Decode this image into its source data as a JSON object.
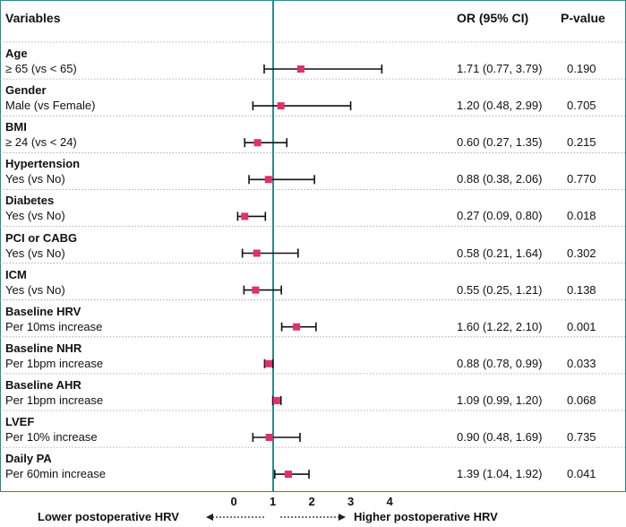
{
  "chart_data": {
    "type": "forest",
    "headers": {
      "variables": "Variables",
      "or": "OR (95% CI)",
      "p": "P-value"
    },
    "reference_value": 1,
    "x_ticks": [
      "0",
      "1",
      "2",
      "3",
      "4"
    ],
    "x_tick_values": [
      0,
      1,
      2,
      3,
      4
    ],
    "xlim": [
      0,
      4.2
    ],
    "axis_left_label": "Lower postoperative HRV",
    "axis_right_label": "Higher postoperative HRV",
    "rows": [
      {
        "variable": "Age",
        "level": "≥ 65 (vs < 65)",
        "or": 1.71,
        "lo": 0.77,
        "hi": 3.79,
        "or_text": "1.71 (0.77, 3.79)",
        "p": "0.190"
      },
      {
        "variable": "Gender",
        "level": "Male (vs Female)",
        "or": 1.2,
        "lo": 0.48,
        "hi": 2.99,
        "or_text": "1.20 (0.48, 2.99)",
        "p": "0.705"
      },
      {
        "variable": "BMI",
        "level": "≥ 24 (vs < 24)",
        "or": 0.6,
        "lo": 0.27,
        "hi": 1.35,
        "or_text": "0.60 (0.27, 1.35)",
        "p": "0.215"
      },
      {
        "variable": "Hypertension",
        "level": "Yes (vs No)",
        "or": 0.88,
        "lo": 0.38,
        "hi": 2.06,
        "or_text": "0.88 (0.38, 2.06)",
        "p": "0.770"
      },
      {
        "variable": "Diabetes",
        "level": "Yes (vs No)",
        "or": 0.27,
        "lo": 0.09,
        "hi": 0.8,
        "or_text": "0.27 (0.09, 0.80)",
        "p": "0.018"
      },
      {
        "variable": "PCI or CABG",
        "level": "Yes (vs No)",
        "or": 0.58,
        "lo": 0.21,
        "hi": 1.64,
        "or_text": "0.58 (0.21, 1.64)",
        "p": "0.302"
      },
      {
        "variable": "ICM",
        "level": "Yes (vs No)",
        "or": 0.55,
        "lo": 0.25,
        "hi": 1.21,
        "or_text": "0.55 (0.25, 1.21)",
        "p": "0.138"
      },
      {
        "variable": "Baseline HRV",
        "level": "Per 10ms increase",
        "or": 1.6,
        "lo": 1.22,
        "hi": 2.1,
        "or_text": "1.60 (1.22, 2.10)",
        "p": "0.001"
      },
      {
        "variable": "Baseline NHR",
        "level": "Per 1bpm increase",
        "or": 0.88,
        "lo": 0.78,
        "hi": 0.99,
        "or_text": "0.88 (0.78, 0.99)",
        "p": "0.033"
      },
      {
        "variable": "Baseline AHR",
        "level": "Per 1bpm increase",
        "or": 1.09,
        "lo": 0.99,
        "hi": 1.2,
        "or_text": "1.09 (0.99, 1.20)",
        "p": "0.068"
      },
      {
        "variable": "LVEF",
        "level": "Per 10% increase",
        "or": 0.9,
        "lo": 0.48,
        "hi": 1.69,
        "or_text": "0.90 (0.48, 1.69)",
        "p": "0.735"
      },
      {
        "variable": "Daily PA",
        "level": "Per 60min increase",
        "or": 1.39,
        "lo": 1.04,
        "hi": 1.92,
        "or_text": "1.39 (1.04, 1.92)",
        "p": "0.041"
      }
    ],
    "colors": {
      "point": "#e0306a",
      "ci": "#111111",
      "reference_line": "#2a8a8a",
      "grid": "#1f6f6f",
      "separator": "#9a9a9a",
      "frame": "#2a8a8a"
    }
  }
}
